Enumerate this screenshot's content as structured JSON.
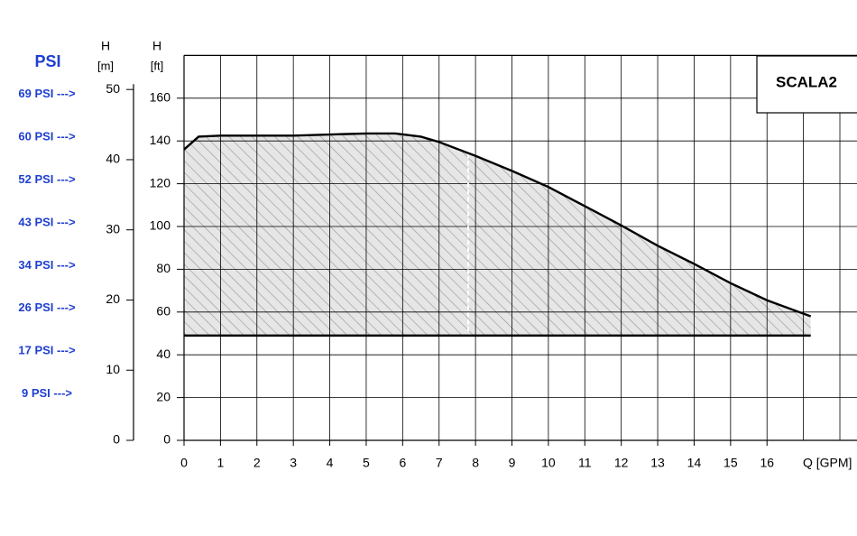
{
  "chart_data": {
    "type": "line",
    "psi_title": "PSI",
    "psi_labels": [
      {
        "text": "69 PSI  --->",
        "at": 160
      },
      {
        "text": "60 PSI  --->",
        "at": 140
      },
      {
        "text": "52 PSI  --->",
        "at": 120
      },
      {
        "text": "43 PSI  --->",
        "at": 100
      },
      {
        "text": "34 PSI  --->",
        "at": 80
      },
      {
        "text": "26 PSI  --->",
        "at": 60
      },
      {
        "text": "17 PSI  --->",
        "at": 40
      },
      {
        "text": "9 PSI  --->",
        "at": 20
      }
    ],
    "y_label": "H",
    "y_unit": "[ft]",
    "y2_label": "H",
    "y2_unit": "[m]",
    "x_label": "Q [GPM]",
    "xlim": [
      0,
      18.47
    ],
    "xticks": [
      0,
      1,
      2,
      3,
      4,
      5,
      6,
      7,
      8,
      9,
      10,
      11,
      12,
      13,
      14,
      15,
      16
    ],
    "extra_xgrid": [
      17,
      18
    ],
    "ylim": [
      0,
      180
    ],
    "yticks": [
      0,
      20,
      40,
      60,
      80,
      100,
      120,
      140,
      160
    ],
    "y2lim": [
      0,
      54.86
    ],
    "y2ticks": [
      0,
      10,
      20,
      30,
      40,
      50
    ],
    "grid": true,
    "series": [
      {
        "name": "SCALA2",
        "color": "#000000",
        "x": [
          0,
          0.4,
          1,
          3,
          5,
          5.8,
          6.5,
          7,
          8,
          9,
          10,
          11,
          12,
          13,
          14,
          15,
          16,
          17.2
        ],
        "values": [
          136,
          142,
          142.5,
          142.5,
          143.5,
          143.5,
          142,
          139.5,
          133,
          126,
          118.5,
          109.5,
          100.5,
          91,
          82.5,
          73.5,
          65.5,
          58
        ]
      }
    ],
    "baseline": {
      "color": "#000000",
      "x": [
        0,
        17.2
      ],
      "values": [
        49,
        49
      ]
    }
  }
}
